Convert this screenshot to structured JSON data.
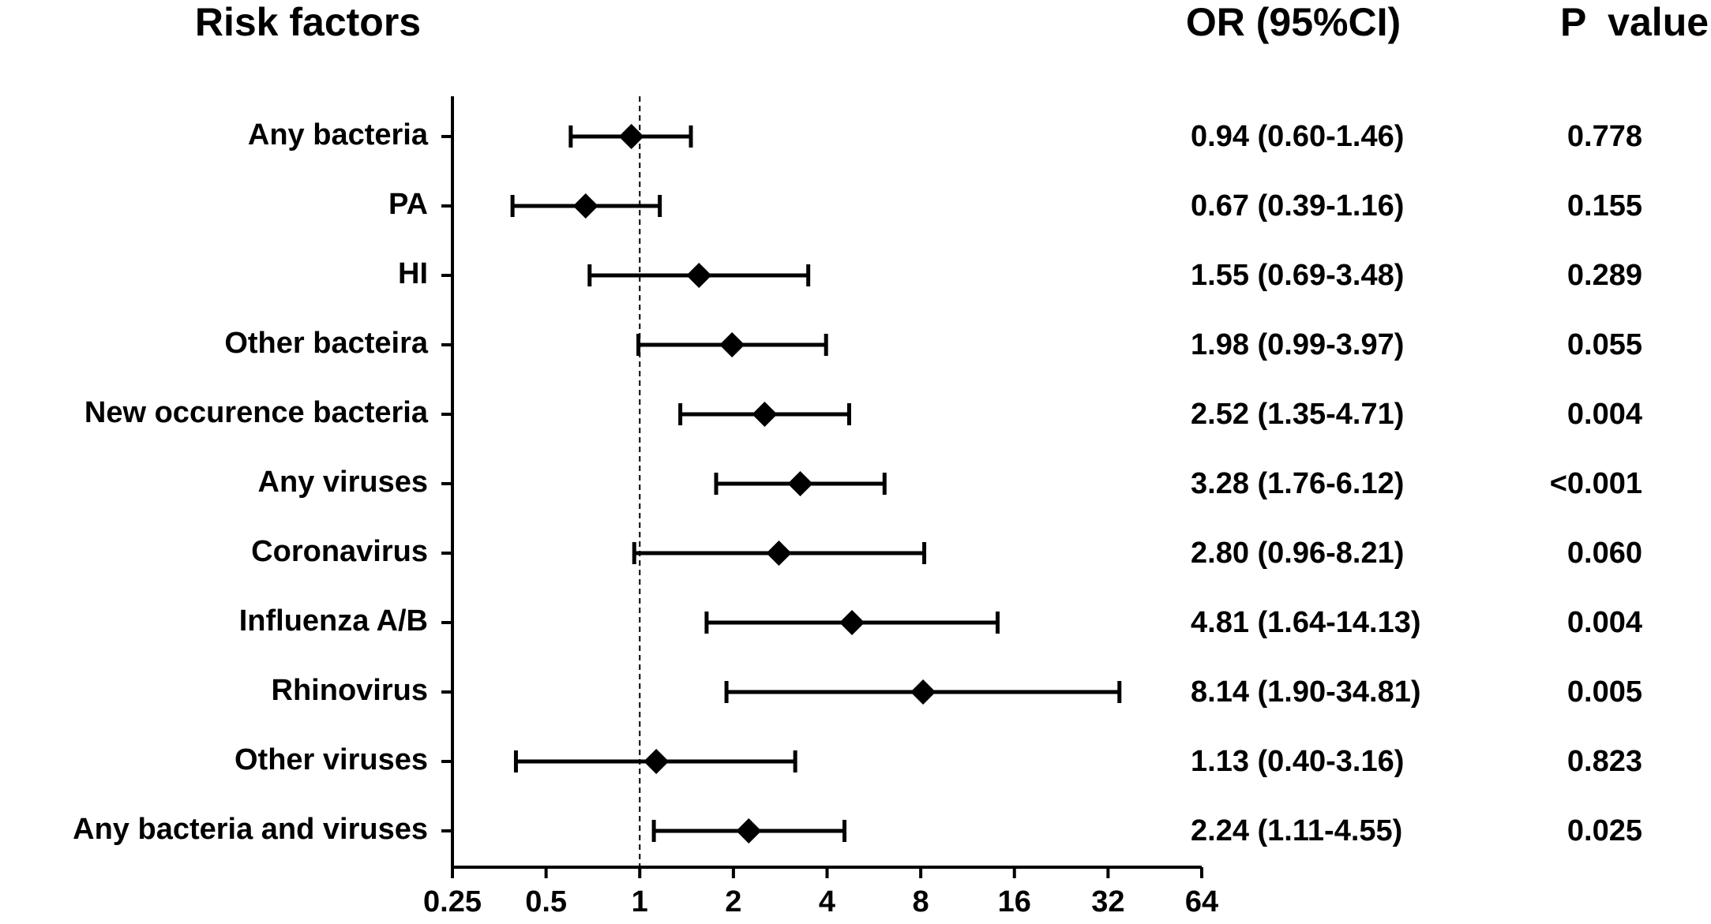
{
  "chart_data": {
    "type": "forest",
    "title": "Risk factors",
    "or_header": "OR (95%CI)",
    "p_header": "P  value",
    "categories": [
      "Any bacteria",
      "PA",
      "HI",
      "Other bacteira",
      "New occurence bacteria",
      "Any viruses",
      "Coronavirus",
      "Influenza A/B",
      "Rhinovirus",
      "Other viruses",
      "Any bacteria and viruses"
    ],
    "values": [
      0.94,
      0.67,
      1.55,
      1.98,
      2.52,
      3.28,
      2.8,
      4.81,
      8.14,
      1.13,
      2.24
    ],
    "lower": [
      0.6,
      0.39,
      0.69,
      0.99,
      1.35,
      1.76,
      0.96,
      1.64,
      1.9,
      0.4,
      1.11
    ],
    "upper": [
      1.46,
      1.16,
      3.48,
      3.97,
      4.71,
      6.12,
      8.21,
      14.13,
      34.81,
      3.16,
      4.55
    ],
    "value_labels": [
      "0.94 (0.60-1.46)",
      "0.67 (0.39-1.16)",
      "1.55 (0.69-3.48)",
      "1.98 (0.99-3.97)",
      "2.52 (1.35-4.71)",
      "3.28 (1.76-6.12)",
      "2.80 (0.96-8.21)",
      "4.81 (1.64-14.13)",
      "8.14 (1.90-34.81)",
      "1.13 (0.40-3.16)",
      "2.24 (1.11-4.55)"
    ],
    "p_values": [
      "0.778",
      "0.155",
      "0.289",
      "0.055",
      "0.004",
      "<0.001",
      "0.060",
      "0.004",
      "0.005",
      "0.823",
      "0.025"
    ],
    "reference": 1,
    "xscale": "log2",
    "xlim": [
      0.25,
      64
    ],
    "xticks": [
      0.25,
      0.5,
      1,
      2,
      4,
      8,
      16,
      32,
      64
    ],
    "color": "#000000"
  }
}
